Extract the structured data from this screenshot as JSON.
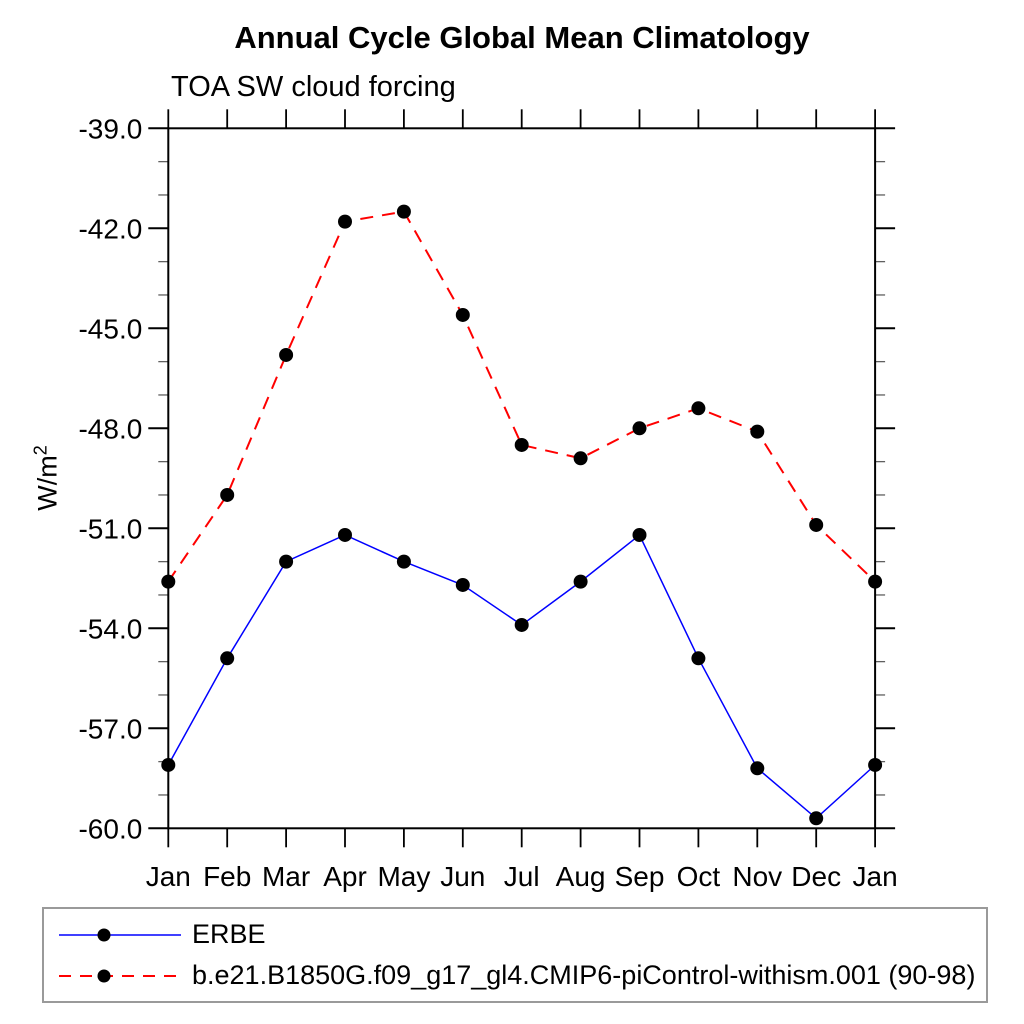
{
  "chart_data": {
    "type": "line",
    "title": "Annual Cycle Global Mean Climatology",
    "subtitle": "TOA SW cloud forcing",
    "ylabel": "W/m^2",
    "categories": [
      "Jan",
      "Feb",
      "Mar",
      "Apr",
      "May",
      "Jun",
      "Jul",
      "Aug",
      "Sep",
      "Oct",
      "Nov",
      "Dec",
      "Jan"
    ],
    "series": [
      {
        "name": "ERBE",
        "color": "#0000ff",
        "style": "solid",
        "marker": "filled-circle",
        "marker_color": "#000000",
        "values": [
          -58.1,
          -54.9,
          -52.0,
          -51.2,
          -52.0,
          -52.7,
          -53.9,
          -52.6,
          -51.2,
          -54.9,
          -58.2,
          -59.7,
          -58.1
        ]
      },
      {
        "name": "b.e21.B1850G.f09_g17_gl4.CMIP6-piControl-withism.001 (90-98)",
        "color": "#ff0000",
        "style": "dashed",
        "marker": "filled-circle",
        "marker_color": "#000000",
        "values": [
          -52.6,
          -50.0,
          -45.8,
          -41.8,
          -41.5,
          -44.6,
          -48.5,
          -48.9,
          -48.0,
          -47.4,
          -48.1,
          -50.9,
          -52.6
        ]
      }
    ],
    "ylim": [
      -60,
      -39
    ],
    "ytick_values": [
      -39,
      -42,
      -45,
      -48,
      -51,
      -54,
      -57,
      -60
    ],
    "ytick_labels": [
      "-39.0",
      "-42.0",
      "-45.0",
      "-48.0",
      "-51.0",
      "-54.0",
      "-57.0",
      "-60.0"
    ],
    "minor_tick_step": 1,
    "grid": false,
    "legend_position": "bottom"
  },
  "y_axis": {
    "label_base": "W/m",
    "label_sup": "2"
  },
  "legend": {
    "items": [
      {
        "label": "ERBE",
        "color": "#0000ff",
        "style": "solid"
      },
      {
        "label": "b.e21.B1850G.f09_g17_gl4.CMIP6-piControl-withism.001 (90-98)",
        "color": "#ff0000",
        "style": "dashed"
      }
    ]
  },
  "colors": {
    "axis": "#000000",
    "major_tick": "#000000",
    "minor_tick": "#606060",
    "marker": "#000000",
    "legend_border": "#9a9a9a",
    "background": "#ffffff"
  }
}
